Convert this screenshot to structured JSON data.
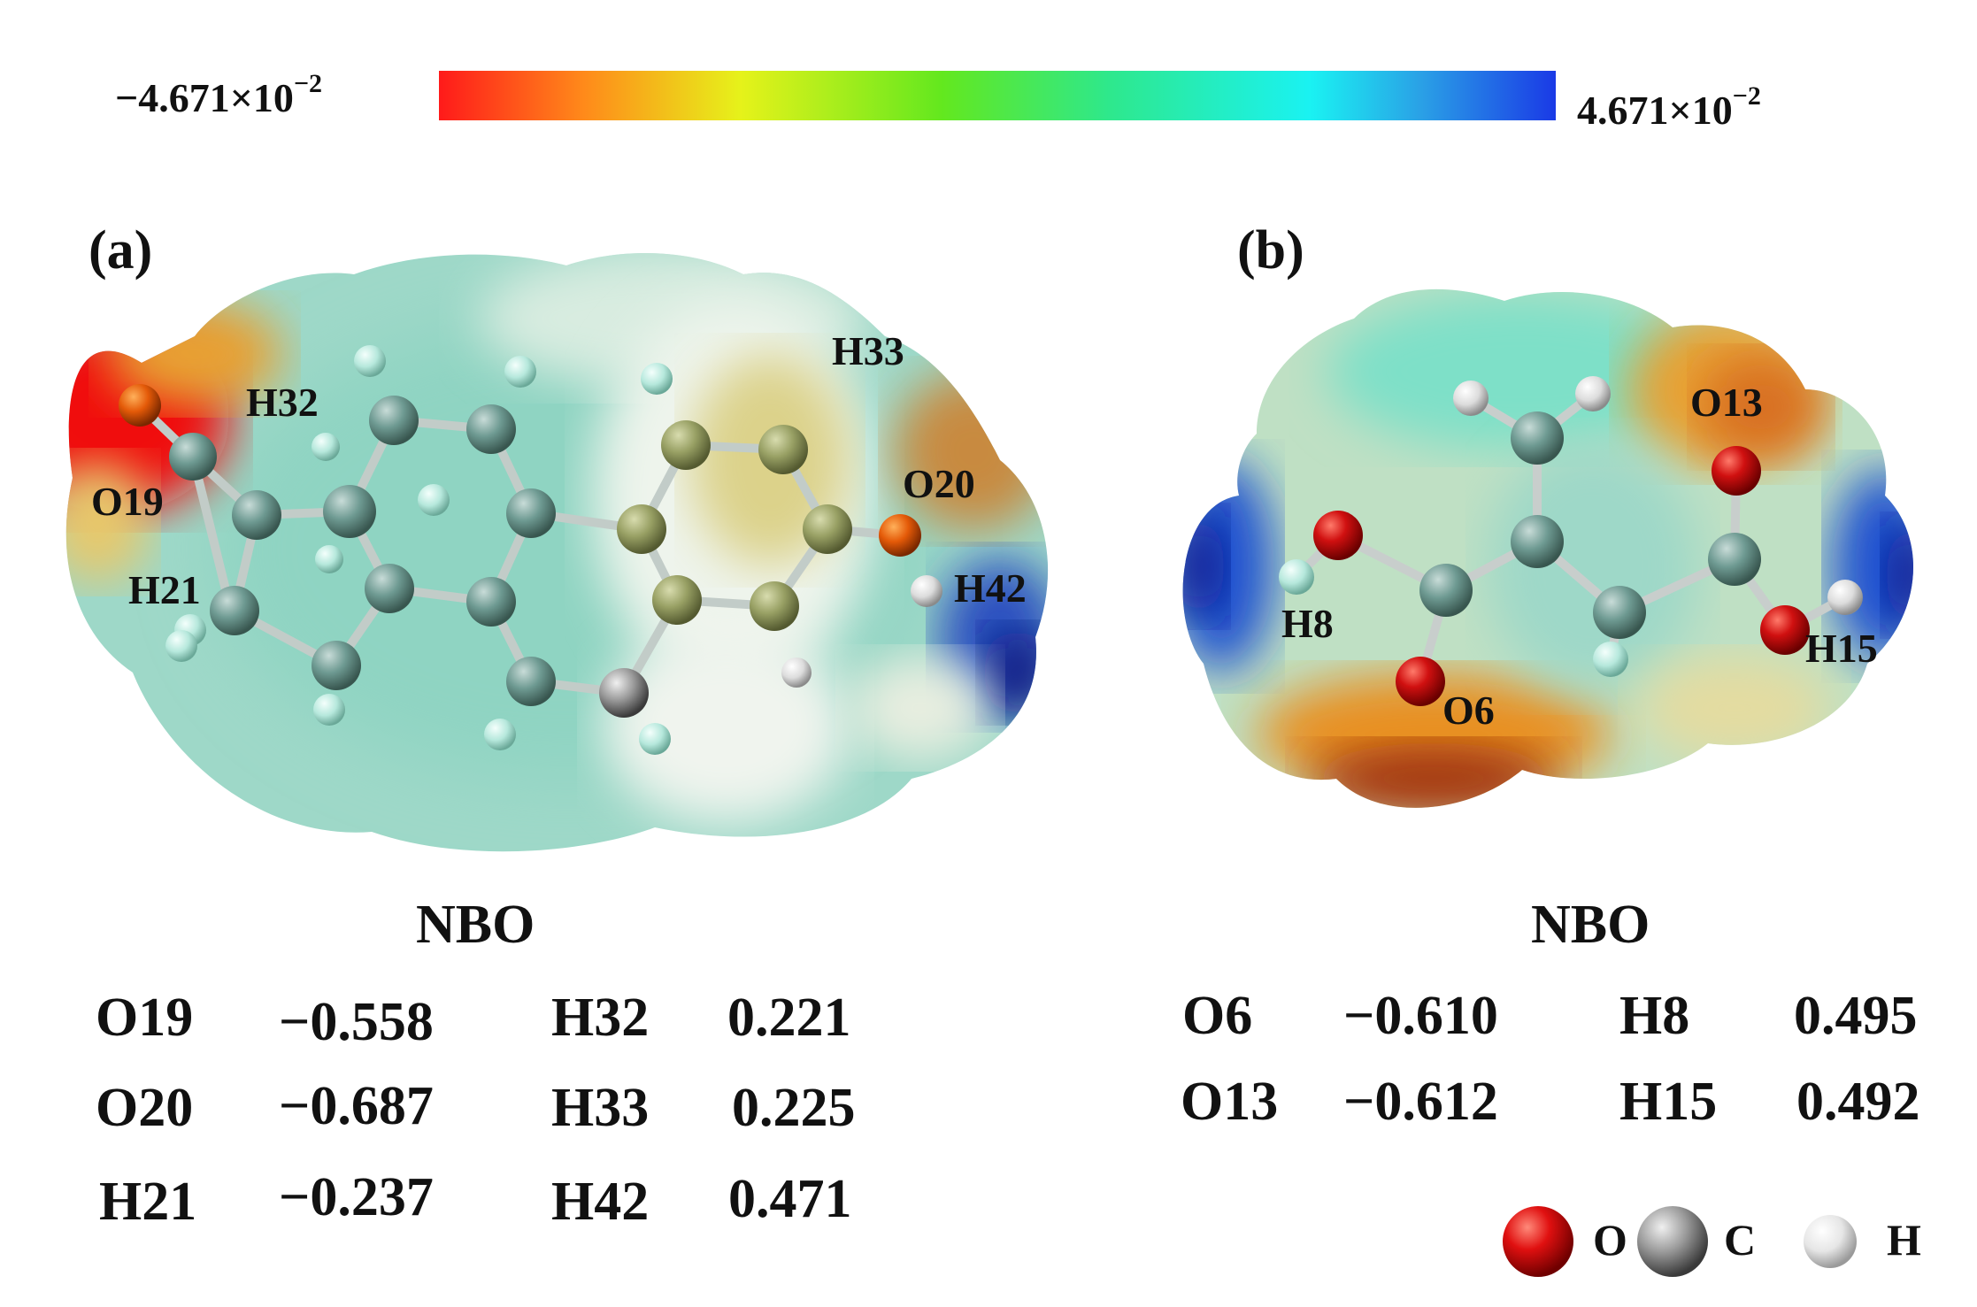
{
  "colorbar": {
    "min_label": "−4.671×10",
    "min_exp": "−2",
    "max_label": "4.671×10",
    "max_exp": "−2"
  },
  "panel_a": {
    "label": "(a)",
    "atoms": {
      "o19": "O19",
      "h32": "H32",
      "h21": "H21",
      "h33": "H33",
      "o20": "O20",
      "h42": "H42"
    },
    "nbo_title": "NBO",
    "nbo_rows": [
      [
        "O19",
        "−0.558",
        "H32",
        "0.221"
      ],
      [
        "O20",
        "−0.687",
        "H33",
        "0.225"
      ],
      [
        "H21",
        "−0.237",
        "H42",
        "0.471"
      ]
    ]
  },
  "panel_b": {
    "label": "(b)",
    "atoms": {
      "h8": "H8",
      "o6": "O6",
      "o13": "O13",
      "h15": "H15"
    },
    "nbo_title": "NBO",
    "nbo_rows": [
      [
        "O6",
        "−0.610",
        "H8",
        "0.495"
      ],
      [
        "O13",
        "−0.612",
        "H15",
        "0.492"
      ]
    ]
  },
  "legend": {
    "o": "O",
    "c": "C",
    "h": "H"
  },
  "colors": {
    "oxygen": "#d01010",
    "carbon": "#8a8a8a",
    "hydrogen": "#f2f2f2",
    "negative": "#ff1a1a",
    "positive": "#1a3ae6"
  }
}
